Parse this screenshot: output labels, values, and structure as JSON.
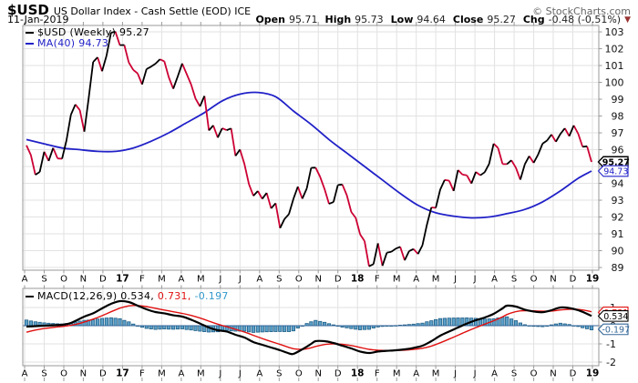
{
  "header": {
    "symbol": "$USD",
    "title": "US Dollar Index - Cash Settle (EOD) ICE",
    "date": "11-Jan-2019",
    "source": "© StockCharts.com",
    "quote": {
      "items": [
        {
          "label": "Open",
          "value": "95.71"
        },
        {
          "label": "High",
          "value": "95.73"
        },
        {
          "label": "Low",
          "value": "94.64"
        },
        {
          "label": "Close",
          "value": "95.27"
        },
        {
          "label": "Chg",
          "value": "-0.48 (-0.51%)"
        }
      ],
      "direction_icon": "down-triangle"
    }
  },
  "colors": {
    "up": "#000000",
    "down": "#CC0033",
    "ma": "#2121C8",
    "macd": "#000000",
    "signal": "#E01010",
    "hist_fill": "#5CA0C8",
    "hist_stroke": "#1F5F87",
    "zero_line": "#336699",
    "grid": "#E2E2E2",
    "frame": "#999999",
    "source_text": "#666666",
    "arrow": "#993333",
    "legend_hist_text": "#3399CC",
    "box_main": "#000000",
    "box_ma": "#2121C8"
  },
  "chart_data": [
    {
      "type": "line",
      "title": "$USD (Weekly)",
      "legend": {
        "label": "$USD (Weekly)",
        "value": "95.27",
        "ma_label": "MA(40)",
        "ma_value": "94.73"
      },
      "x_tick_labels": [
        "A",
        "S",
        "O",
        "N",
        "D",
        "17",
        "F",
        "M",
        "A",
        "M",
        "J",
        "J",
        "A",
        "S",
        "O",
        "N",
        "D",
        "18",
        "F",
        "M",
        "A",
        "M",
        "J",
        "J",
        "A",
        "S",
        "O",
        "N",
        "D",
        "19"
      ],
      "bold_tick_indices": [
        5,
        17,
        29
      ],
      "y_ticks": [
        103,
        102,
        101,
        100,
        99,
        98,
        97,
        96,
        95,
        94,
        93,
        92,
        91,
        90,
        89
      ],
      "ylim": [
        88.84,
        103.38
      ],
      "grid": true,
      "legend_position": "top-left",
      "series": [
        {
          "name": "$USD weekly close",
          "values": [
            96.26,
            95.68,
            94.51,
            94.68,
            95.88,
            95.33,
            96.1,
            95.48,
            95.46,
            96.54,
            98.08,
            98.69,
            98.35,
            97.07,
            99.06,
            101.21,
            101.49,
            100.66,
            101.59,
            102.95,
            103.01,
            102.21,
            102.22,
            101.18,
            100.74,
            100.53,
            99.88,
            100.79,
            100.93,
            101.11,
            101.37,
            101.25,
            100.3,
            99.62,
            100.35,
            101.12,
            100.51,
            99.89,
            99.04,
            98.57,
            99.19,
            97.14,
            97.44,
            96.72,
            97.27,
            97.16,
            97.26,
            95.63,
            96.01,
            95.15,
            93.96,
            93.26,
            93.54,
            93.08,
            93.43,
            92.51,
            92.82,
            91.34,
            91.88,
            92.17,
            93.07,
            93.8,
            93.09,
            93.7,
            94.92,
            94.93,
            94.39,
            93.66,
            92.78,
            92.89,
            93.9,
            93.93,
            93.3,
            92.3,
            91.95,
            90.97,
            90.57,
            89.07,
            89.2,
            90.44,
            89.1,
            89.88,
            89.93,
            90.12,
            90.23,
            89.43,
            89.97,
            90.1,
            89.8,
            90.32,
            91.54,
            92.57,
            92.54,
            93.63,
            94.21,
            94.16,
            93.55,
            94.79,
            94.52,
            94.47,
            93.99,
            94.68,
            94.48,
            94.66,
            95.16,
            96.36,
            96.1,
            95.15,
            95.14,
            95.37,
            94.93,
            94.22,
            95.13,
            95.62,
            95.22,
            95.71,
            96.36,
            96.54,
            96.9,
            96.47,
            96.93,
            97.27,
            96.8,
            97.44,
            96.95,
            96.17,
            96.2,
            95.27
          ]
        },
        {
          "name": "MA(40)",
          "anchors": [
            [
              0,
              96.6
            ],
            [
              4,
              96.35
            ],
            [
              8,
              96.1
            ],
            [
              12,
              96.0
            ],
            [
              16,
              95.9
            ],
            [
              20,
              95.9
            ],
            [
              24,
              96.1
            ],
            [
              28,
              96.5
            ],
            [
              32,
              97.0
            ],
            [
              36,
              97.6
            ],
            [
              40,
              98.2
            ],
            [
              44,
              98.9
            ],
            [
              48,
              99.3
            ],
            [
              52,
              99.4
            ],
            [
              56,
              99.15
            ],
            [
              60,
              98.3
            ],
            [
              64,
              97.5
            ],
            [
              68,
              96.6
            ],
            [
              72,
              95.8
            ],
            [
              76,
              95.0
            ],
            [
              80,
              94.2
            ],
            [
              84,
              93.4
            ],
            [
              88,
              92.7
            ],
            [
              92,
              92.25
            ],
            [
              96,
              92.05
            ],
            [
              100,
              91.95
            ],
            [
              104,
              92.0
            ],
            [
              108,
              92.2
            ],
            [
              112,
              92.45
            ],
            [
              116,
              92.9
            ],
            [
              120,
              93.55
            ],
            [
              124,
              94.3
            ],
            [
              127,
              94.73
            ]
          ]
        }
      ],
      "last_value_boxes": [
        {
          "text": "95.27",
          "value": 95.27,
          "color": "#000000",
          "bold": true
        },
        {
          "text": "94.73",
          "value": 94.73,
          "color": "#2121C8",
          "bold": false
        }
      ]
    },
    {
      "type": "macd",
      "legend": {
        "label": "MACD(12,26,9)",
        "macd_text": "0.534,",
        "signal_text": "0.731,",
        "hist_text": "-0.197"
      },
      "x_tick_labels": [
        "A",
        "S",
        "O",
        "N",
        "D",
        "17",
        "F",
        "M",
        "A",
        "M",
        "J",
        "J",
        "A",
        "S",
        "O",
        "N",
        "D",
        "18",
        "F",
        "M",
        "A",
        "M",
        "J",
        "J",
        "A",
        "S",
        "O",
        "N",
        "D",
        "19"
      ],
      "bold_tick_indices": [
        5,
        17,
        29
      ],
      "y_ticks": [
        1,
        0,
        -1,
        -2
      ],
      "ylim": [
        -2.2,
        2.05
      ],
      "grid": true,
      "macd_anchors": [
        [
          0,
          -0.05
        ],
        [
          4,
          0.0
        ],
        [
          8,
          0.05
        ],
        [
          10,
          0.15
        ],
        [
          13,
          0.5
        ],
        [
          15,
          0.68
        ],
        [
          17,
          0.95
        ],
        [
          19,
          1.2
        ],
        [
          21,
          1.35
        ],
        [
          23,
          1.3
        ],
        [
          25,
          1.1
        ],
        [
          27,
          0.9
        ],
        [
          29,
          0.75
        ],
        [
          31,
          0.68
        ],
        [
          33,
          0.57
        ],
        [
          35,
          0.5
        ],
        [
          37,
          0.33
        ],
        [
          39,
          0.12
        ],
        [
          41,
          -0.1
        ],
        [
          43,
          -0.25
        ],
        [
          45,
          -0.32
        ],
        [
          47,
          -0.5
        ],
        [
          49,
          -0.65
        ],
        [
          51,
          -0.9
        ],
        [
          53,
          -1.05
        ],
        [
          55,
          -1.2
        ],
        [
          57,
          -1.35
        ],
        [
          59,
          -1.52
        ],
        [
          60,
          -1.55
        ],
        [
          62,
          -1.3
        ],
        [
          64,
          -1.0
        ],
        [
          65,
          -0.85
        ],
        [
          67,
          -0.85
        ],
        [
          69,
          -0.95
        ],
        [
          71,
          -1.1
        ],
        [
          73,
          -1.25
        ],
        [
          75,
          -1.42
        ],
        [
          77,
          -1.5
        ],
        [
          79,
          -1.42
        ],
        [
          81,
          -1.38
        ],
        [
          83,
          -1.35
        ],
        [
          85,
          -1.3
        ],
        [
          87,
          -1.22
        ],
        [
          89,
          -1.1
        ],
        [
          91,
          -0.85
        ],
        [
          93,
          -0.55
        ],
        [
          95,
          -0.32
        ],
        [
          97,
          -0.1
        ],
        [
          99,
          0.12
        ],
        [
          101,
          0.3
        ],
        [
          103,
          0.45
        ],
        [
          105,
          0.65
        ],
        [
          107,
          0.95
        ],
        [
          108,
          1.1
        ],
        [
          110,
          1.05
        ],
        [
          112,
          0.88
        ],
        [
          114,
          0.78
        ],
        [
          116,
          0.74
        ],
        [
          118,
          0.85
        ],
        [
          120,
          1.0
        ],
        [
          122,
          0.97
        ],
        [
          124,
          0.85
        ],
        [
          126,
          0.65
        ],
        [
          127,
          0.534
        ]
      ],
      "signal_ema_period": 9,
      "signal_seed": -0.36,
      "last_value_boxes": [
        {
          "text": "0.731",
          "value": 0.731,
          "color": "#E01010",
          "bold": false
        },
        {
          "text": "0.534",
          "value": 0.534,
          "color": "#000000",
          "bold": false
        },
        {
          "text": "-0.197",
          "value": -0.197,
          "color": "#336699",
          "bold": false
        }
      ]
    }
  ]
}
